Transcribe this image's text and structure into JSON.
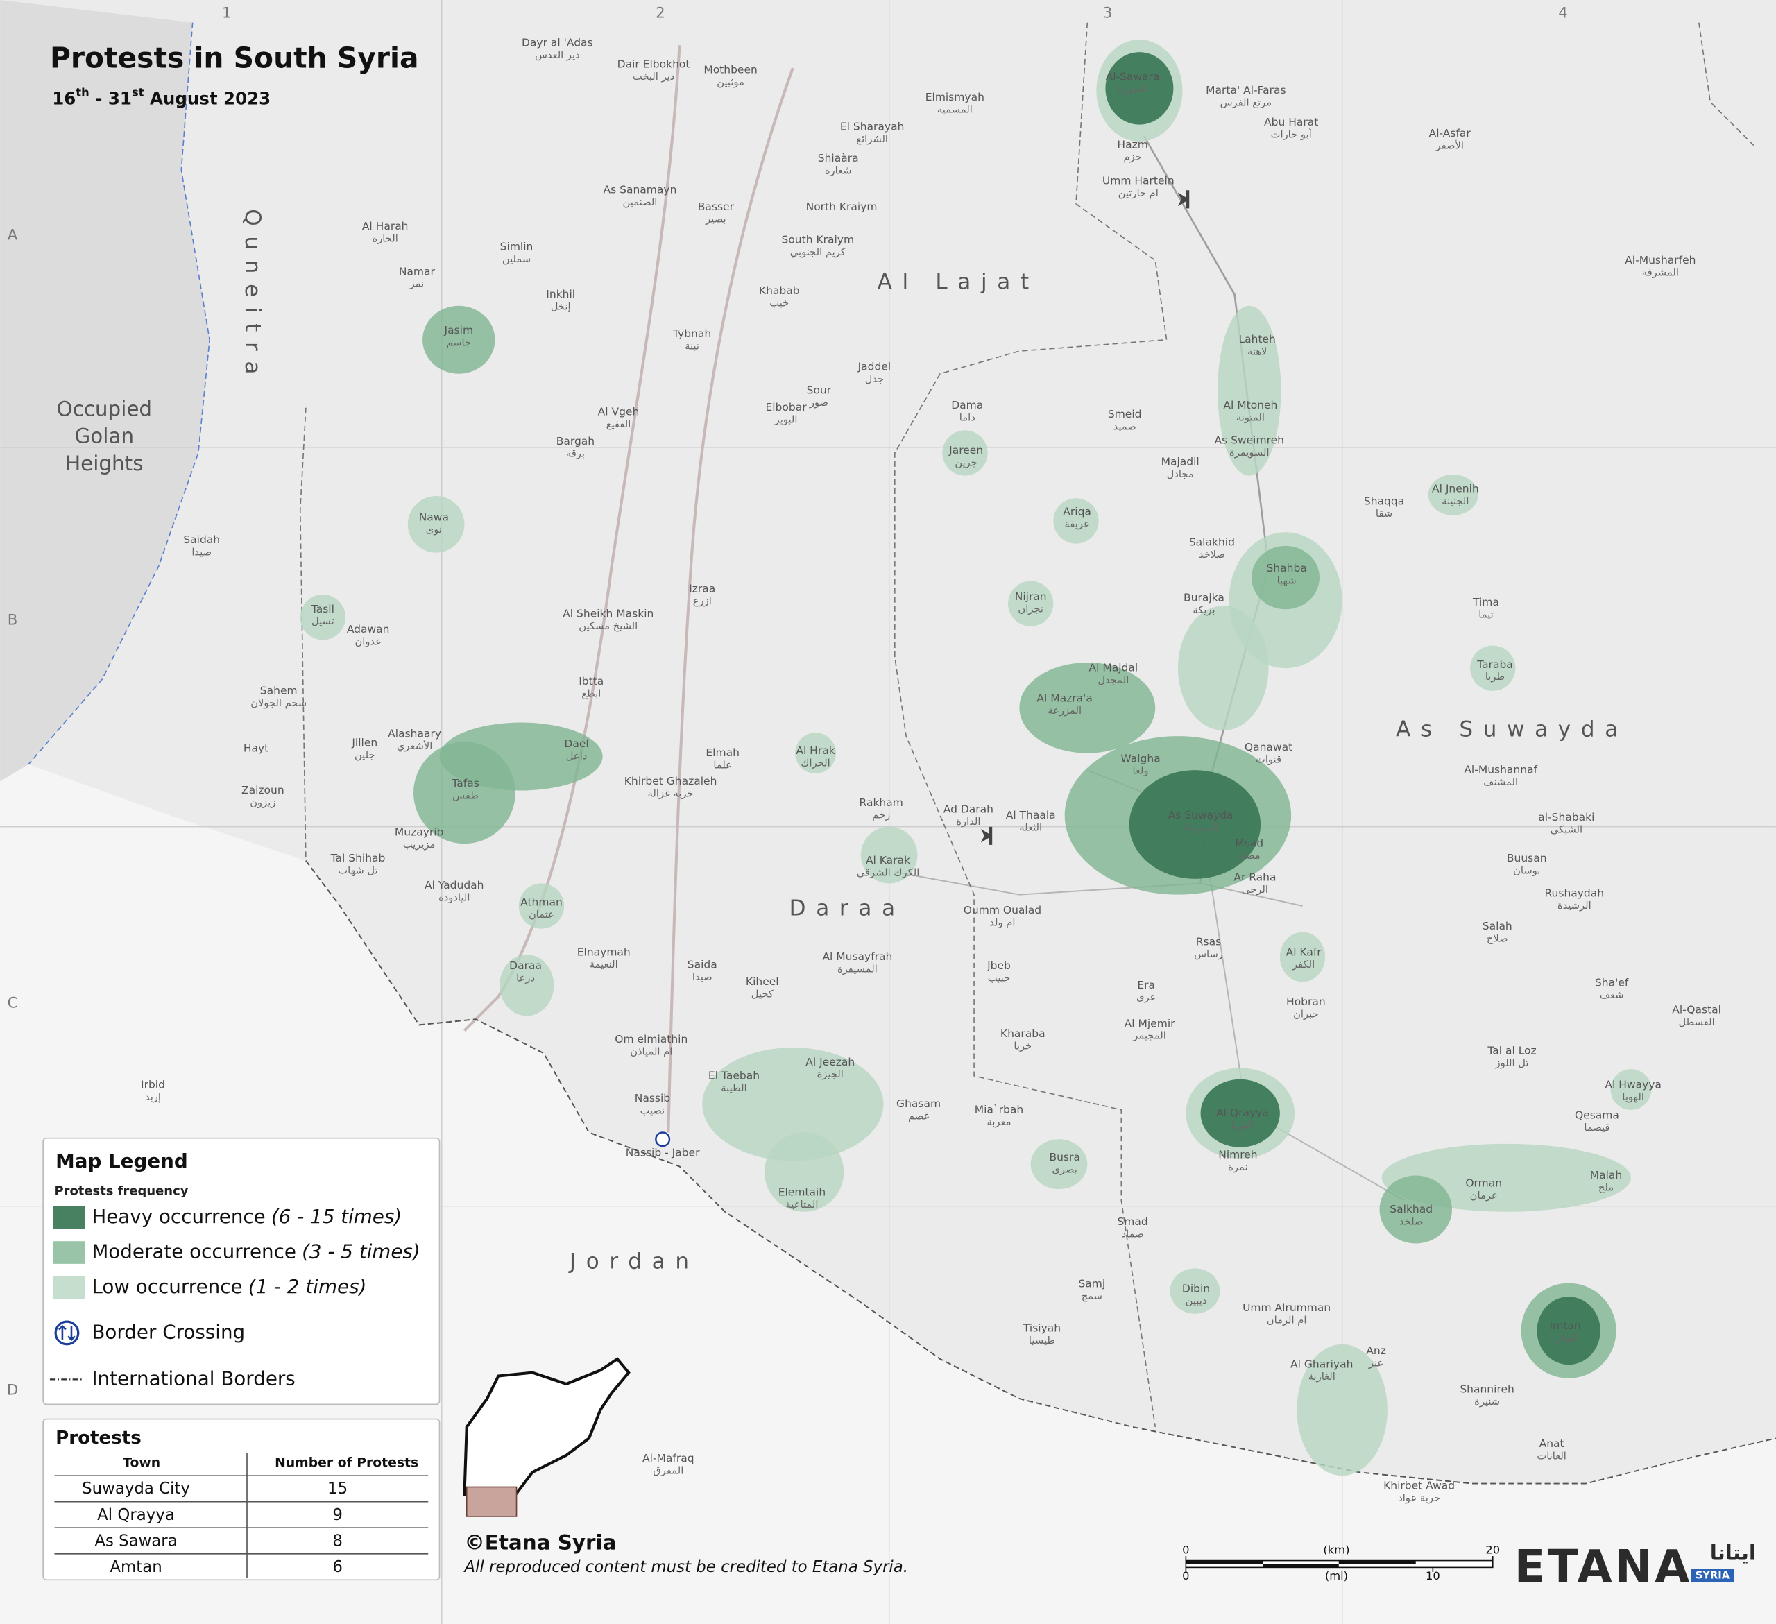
{
  "map": {
    "title": "Protests in South Syria",
    "subtitle": [
      "16",
      "th",
      " - 31",
      "st",
      " August 2023"
    ]
  },
  "grid": {
    "columns": [
      "1",
      "2",
      "3",
      "4"
    ],
    "rows": [
      "A",
      "B",
      "C",
      "D"
    ]
  },
  "regions": {
    "quneitra": "Quneitra",
    "golan": [
      "Occupied",
      "Golan",
      "Heights"
    ],
    "lajat": "Al Lajat",
    "suwayda": "As Suwayda",
    "daraa": "Daraa",
    "jordan": "Jordan"
  },
  "places": [
    {
      "en": "Al-Sawara",
      "ar": "الصورة"
    },
    {
      "en": "Hazm",
      "ar": "حزم"
    },
    {
      "en": "Umm Hartein",
      "ar": "ام حارتين"
    },
    {
      "en": "Marta' Al-Faras",
      "ar": "مرتع الفرس"
    },
    {
      "en": "Abu Harat",
      "ar": "أبو حارات"
    },
    {
      "en": "Elmismyah",
      "ar": "المسمية"
    },
    {
      "en": "El Sharayah",
      "ar": "الشرائع"
    },
    {
      "en": "Shiaàra",
      "ar": "شعارة"
    },
    {
      "en": "North Kraiym"
    },
    {
      "en": "South Kraiym",
      "ar": "كريم الجنوبي"
    },
    {
      "en": "Mothbeen",
      "ar": "موثبين"
    },
    {
      "en": "Dair Elbokhot",
      "ar": "دير البخت"
    },
    {
      "en": "Dayr al 'Adas",
      "ar": "دير العدس"
    },
    {
      "en": "As Sanamayn",
      "ar": "الصنمين"
    },
    {
      "en": "Basser",
      "ar": "بصير"
    },
    {
      "en": "Jasim",
      "ar": "جاسم"
    },
    {
      "en": "Nawa",
      "ar": "نوى"
    },
    {
      "en": "Tasil",
      "ar": "تسيل"
    },
    {
      "en": "Tafas",
      "ar": "طفس"
    },
    {
      "en": "Dael",
      "ar": "داعل"
    },
    {
      "en": "Muzayrib",
      "ar": "مزيريب"
    },
    {
      "en": "Athman",
      "ar": "عثمان"
    },
    {
      "en": "Daraa",
      "ar": "درعا"
    },
    {
      "en": "Al Hrak",
      "ar": "الحراك"
    },
    {
      "en": "Jareen",
      "ar": "جرين"
    },
    {
      "en": "Ariqa",
      "ar": "عريقة"
    },
    {
      "en": "Nijran",
      "ar": "نجران"
    },
    {
      "en": "Al Mazra'a",
      "ar": "المزرعة"
    },
    {
      "en": "Al Majdal",
      "ar": "المجدل"
    },
    {
      "en": "As Suwayda",
      "ar": "السويداء"
    },
    {
      "en": "Walgha",
      "ar": "ولغا"
    },
    {
      "en": "Qanawat",
      "ar": "قنوات"
    },
    {
      "en": "Shahba",
      "ar": "شهبا"
    },
    {
      "en": "Lahteh",
      "ar": "لاهتة"
    },
    {
      "en": "Al Mtoneh",
      "ar": "المتونة"
    },
    {
      "en": "As Sweimreh",
      "ar": "السويمرة"
    },
    {
      "en": "Al Karak",
      "ar": "الكرك الشرقي"
    },
    {
      "en": "Al Kafr",
      "ar": "الكفر"
    },
    {
      "en": "El Taebah",
      "ar": "الطيبة"
    },
    {
      "en": "Al Jeezah",
      "ar": "الجيزة"
    },
    {
      "en": "Ghasam",
      "ar": "غصم"
    },
    {
      "en": "Elemtaih",
      "ar": "المتاعية"
    },
    {
      "en": "Busra",
      "ar": "بصرى"
    },
    {
      "en": "Al Qrayya",
      "ar": "القريا"
    },
    {
      "en": "Nimreh",
      "ar": "نمرة"
    },
    {
      "en": "Salkhad",
      "ar": "صلخد"
    },
    {
      "en": "Orman",
      "ar": "عرمان"
    },
    {
      "en": "Malah",
      "ar": "ملح"
    },
    {
      "en": "Imtan",
      "ar": "امتان"
    },
    {
      "en": "Al Hwayya",
      "ar": "الهويا"
    },
    {
      "en": "Taraba",
      "ar": "طربا"
    },
    {
      "en": "Al Jnenih",
      "ar": "الجنينة"
    },
    {
      "en": "Dibin",
      "ar": "ديبين"
    },
    {
      "en": "Al Ghariyah",
      "ar": "الغارية"
    },
    {
      "en": "Ad Darah",
      "ar": "الدارة"
    },
    {
      "en": "Al Thaala",
      "ar": "الثعلة"
    },
    {
      "en": "Oumm Oualad",
      "ar": "ام ولد"
    },
    {
      "en": "Rsas",
      "ar": "رساس"
    },
    {
      "en": "Hobran",
      "ar": "حبران"
    },
    {
      "en": "Nassib",
      "ar": "نصيب"
    },
    {
      "en": "Ibtta",
      "ar": "ابطع"
    },
    {
      "en": "Izraa",
      "ar": "ازرع"
    },
    {
      "en": "Al Sheikh Maskin",
      "ar": "الشيخ مسكين"
    },
    {
      "en": "Elmah",
      "ar": "علما"
    },
    {
      "en": "Khirbet Ghazaleh",
      "ar": "خربة غزالة"
    },
    {
      "en": "Saida",
      "ar": "صيدا"
    },
    {
      "en": "Kiheel",
      "ar": "كحيل"
    },
    {
      "en": "Om elmiathin",
      "ar": "ام المياذن"
    },
    {
      "en": "Jbeb",
      "ar": "جبيب"
    },
    {
      "en": "Smad",
      "ar": "صماد"
    },
    {
      "en": "Umm Alrumman",
      "ar": "ام الرمان"
    },
    {
      "en": "Anz",
      "ar": "عنز"
    },
    {
      "en": "Shannireh",
      "ar": "شنيرة"
    },
    {
      "en": "Anat",
      "ar": "العانات"
    },
    {
      "en": "Khirbet Awad",
      "ar": "خربة عواد"
    },
    {
      "en": "Tima",
      "ar": "تيما"
    },
    {
      "en": "Shaqqa",
      "ar": "شقا"
    },
    {
      "en": "Rakham",
      "ar": "رخم"
    },
    {
      "en": "Al Musayfrah",
      "ar": "المسيفرة"
    },
    {
      "en": "Dama",
      "ar": "داما"
    },
    {
      "en": "Smeid",
      "ar": "صميد"
    },
    {
      "en": "Majadil",
      "ar": "مجادل"
    },
    {
      "en": "Salakhid",
      "ar": "صلاخد"
    },
    {
      "en": "Burajka",
      "ar": "بريكة"
    },
    {
      "en": "Ar Raha",
      "ar": "الرحى"
    },
    {
      "en": "Msad",
      "ar": "مصاد"
    },
    {
      "en": "Era",
      "ar": "عرى"
    },
    {
      "en": "Al Mjemir",
      "ar": "المجيمر"
    },
    {
      "en": "Kharaba",
      "ar": "خربا"
    },
    {
      "en": "Mia`rbah",
      "ar": "معربة"
    },
    {
      "en": "Al-Musharfeh",
      "ar": "المشرفة"
    },
    {
      "en": "Al-Asfar",
      "ar": "الأصفر"
    },
    {
      "en": "Al-Mushannaf",
      "ar": "المشنف"
    },
    {
      "en": "al-Shabaki",
      "ar": "الشبكي"
    },
    {
      "en": "Buusan",
      "ar": "بوسان"
    },
    {
      "en": "Rushaydah",
      "ar": "الرشيدة"
    },
    {
      "en": "Salah",
      "ar": "صلاح"
    },
    {
      "en": "Sha'ef",
      "ar": "شعف"
    },
    {
      "en": "Al-Qastal",
      "ar": "القسطل"
    },
    {
      "en": "Tal al Loz",
      "ar": "تل اللوز"
    },
    {
      "en": "Qesama",
      "ar": "قيصما"
    },
    {
      "en": "Samj",
      "ar": "سمج"
    },
    {
      "en": "Tisiyah",
      "ar": "طيسيا"
    },
    {
      "en": "Irbid",
      "ar": "إربد"
    },
    {
      "en": "Al-Mafraq",
      "ar": "المفرق"
    },
    {
      "en": "Saidah",
      "ar": "صيدا"
    },
    {
      "en": "Adawan",
      "ar": "عدوان"
    },
    {
      "en": "Al Harah",
      "ar": "الحارة"
    },
    {
      "en": "Namar",
      "ar": "نمر"
    },
    {
      "en": "Sahem",
      "ar": "سحم الجولان"
    },
    {
      "en": "Jillen",
      "ar": "جلين"
    },
    {
      "en": "Alashaary",
      "ar": "الأشعري"
    },
    {
      "en": "Hayt"
    },
    {
      "en": "Zaizoun",
      "ar": "زيزون"
    },
    {
      "en": "Tal Shihab",
      "ar": "تل شهاب"
    },
    {
      "en": "Al Yadudah",
      "ar": "اليادودة"
    },
    {
      "en": "Elnaymah",
      "ar": "النعيمة"
    },
    {
      "en": "Bargah",
      "ar": "برقة"
    },
    {
      "en": "Al Vgeh",
      "ar": "الفقيع"
    },
    {
      "en": "Inkhil",
      "ar": "إنخل"
    },
    {
      "en": "Simlin",
      "ar": "سملين"
    },
    {
      "en": "Tybnah",
      "ar": "تبنة"
    },
    {
      "en": "Khabab",
      "ar": "خبب"
    },
    {
      "en": "Elbobar",
      "ar": "البوير"
    },
    {
      "en": "Jaddel",
      "ar": "جدل"
    },
    {
      "en": "Sour",
      "ar": "صور"
    },
    {
      "en": "Nassib - Jaber"
    }
  ],
  "legend": {
    "title": "Map Legend",
    "subtitle": "Protests frequency",
    "items": [
      {
        "label": "Heavy occurrence",
        "range": "(6 - 15 times)"
      },
      {
        "label": "Moderate occurrence",
        "range": "(3 - 5 times)"
      },
      {
        "label": "Low occurrence",
        "range": "(1 - 2 times)"
      }
    ],
    "border_crossing": "Border Crossing",
    "borders": "International Borders"
  },
  "table": {
    "title": "Protests",
    "columns": [
      "Town",
      "Number of Protests"
    ],
    "rows": [
      {
        "town": "Suwayda City",
        "count": 15
      },
      {
        "town": "Al Qrayya",
        "count": 9
      },
      {
        "town": "As Sawara",
        "count": 8
      },
      {
        "town": "Amtan",
        "count": 6
      }
    ]
  },
  "credit": {
    "copyright": "©Etana Syria",
    "note": "All reproduced content must be credited to Etana Syria."
  },
  "scale": {
    "km": {
      "unit": "(km)",
      "ticks": [
        0,
        20
      ]
    },
    "mi": {
      "unit": "(mi)",
      "ticks": [
        0,
        10
      ]
    }
  },
  "brand": {
    "name": "ETANA",
    "arabic": "ايتانا",
    "tag": "SYRIA"
  }
}
